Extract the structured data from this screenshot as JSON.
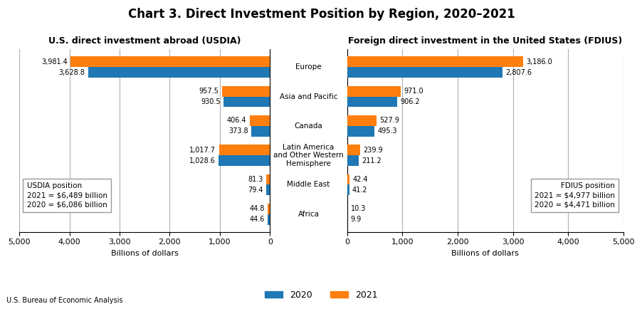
{
  "title": "Chart 3. Direct Investment Position by Region, 2020–2021",
  "note": "U.S. Bureau of Economic Analysis",
  "legend": "lower center",
  "chart_data": [
    {
      "type": "bar",
      "orientation": "horizontal",
      "title": "U.S. direct investment abroad (USDIA)",
      "categories": [
        "Europe",
        "Asia and Pacific",
        "Canada",
        "Latin America\nand Other Western\nHemisphere",
        "Middle East",
        "Africa"
      ],
      "series": [
        {
          "name": "2020",
          "values": [
            3628.8,
            930.5,
            373.8,
            1028.6,
            79.4,
            44.6
          ],
          "value_labels": [
            "3,628.8",
            "930.5",
            "373.8",
            "1,028.6",
            "79.4",
            "44.6"
          ]
        },
        {
          "name": "2021",
          "values": [
            3981.4,
            957.5,
            406.4,
            1017.7,
            81.3,
            44.8
          ],
          "value_labels": [
            "3,981.4",
            "957.5",
            "406.4",
            "1,017.7",
            "81.3",
            "44.8"
          ]
        }
      ],
      "xlabel": "Billions of dollars",
      "xlim": [
        5000,
        0
      ],
      "xticks": [
        0,
        {
          "value": 1000,
          "label": "1,000"
        },
        {
          "value": 2000,
          "label": "2,000"
        },
        {
          "value": 3000,
          "label": "3,000"
        },
        {
          "value": 4000,
          "label": "4,000"
        },
        {
          "value": 5000,
          "label": "5,000"
        }
      ],
      "grid": true,
      "data_labels": true,
      "tick_labels": "x",
      "annotations": [
        "USDIA position",
        "2021 = $6,489 billion",
        "2020 = $6,086 billion"
      ]
    },
    {
      "type": "bar",
      "orientation": "horizontal",
      "title": "Foreign direct investment in the United States (FDIUS)",
      "categories": [
        "Europe",
        "Asia and Pacific",
        "Canada",
        "Latin America\nand Other Western\nHemisphere",
        "Middle East",
        "Africa"
      ],
      "series": [
        {
          "name": "2020",
          "values": [
            2807.6,
            906.2,
            495.3,
            211.2,
            41.2,
            9.9
          ],
          "value_labels": [
            "2,807.6",
            "906.2",
            "495.3",
            "211.2",
            "41.2",
            "9.9"
          ]
        },
        {
          "name": "2021",
          "values": [
            3186.0,
            971.0,
            527.9,
            239.9,
            42.4,
            10.3
          ],
          "value_labels": [
            "3,186.0",
            "971.0",
            "527.9",
            "239.9",
            "42.4",
            "10.3"
          ]
        }
      ],
      "xlabel": "Billions of dollars",
      "xlim": [
        0,
        5000
      ],
      "xticks": [
        0,
        {
          "value": 1000,
          "label": "1,000"
        },
        {
          "value": 2000,
          "label": "2,000"
        },
        {
          "value": 3000,
          "label": "3,000"
        },
        {
          "value": 4000,
          "label": "4,000"
        },
        {
          "value": 5000,
          "label": "5,000"
        }
      ],
      "grid": true,
      "data_labels": true,
      "tick_labels": "x",
      "annotations": [
        "FDIUS position",
        "2021 = $4,977 billion",
        "2020 = $4,471 billion"
      ]
    }
  ]
}
